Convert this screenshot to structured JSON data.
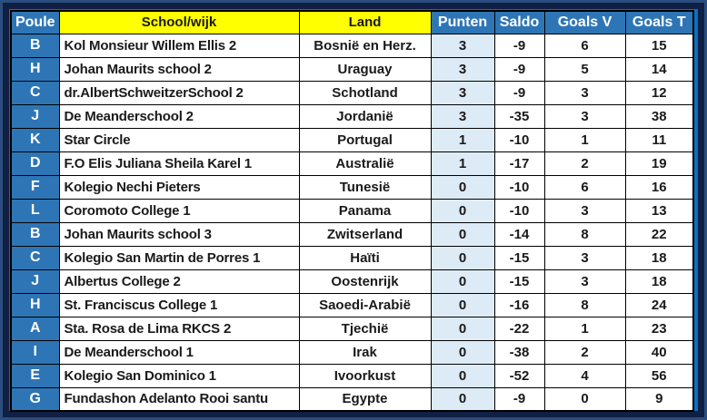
{
  "colors": {
    "background_blue": "#0d6fc0",
    "frame_outer": "#2b4d7f",
    "frame_inner": "#101f44",
    "header_blue": "#2e75b6",
    "header_yellow": "#ffff00",
    "punten_column_fill": "#ddebf7",
    "grid_line": "#000000"
  },
  "table": {
    "headers": {
      "poule": "Poule",
      "school": "School/wijk",
      "land": "Land",
      "punten": "Punten",
      "saldo": "Saldo",
      "goals_v": "Goals V",
      "goals_t": "Goals T"
    },
    "rows": [
      {
        "poule": "B",
        "school": "Kol Monsieur Willem Ellis 2",
        "land": "Bosnië en Herz.",
        "punten": "3",
        "saldo": "-9",
        "goals_v": "6",
        "goals_t": "15"
      },
      {
        "poule": "H",
        "school": "Johan Maurits school 2",
        "land": "Uraguay",
        "punten": "3",
        "saldo": "-9",
        "goals_v": "5",
        "goals_t": "14"
      },
      {
        "poule": "C",
        "school": "dr.AlbertSchweitzerSchool 2",
        "land": "Schotland",
        "punten": "3",
        "saldo": "-9",
        "goals_v": "3",
        "goals_t": "12"
      },
      {
        "poule": "J",
        "school": "De Meanderschool 2",
        "land": "Jordanië",
        "punten": "3",
        "saldo": "-35",
        "goals_v": "3",
        "goals_t": "38"
      },
      {
        "poule": "K",
        "school": "Star Circle",
        "land": "Portugal",
        "punten": "1",
        "saldo": "-10",
        "goals_v": "1",
        "goals_t": "11"
      },
      {
        "poule": "D",
        "school": "F.O Elis Juliana Sheila Karel 1",
        "land": "Australië",
        "punten": "1",
        "saldo": "-17",
        "goals_v": "2",
        "goals_t": "19"
      },
      {
        "poule": "F",
        "school": "Kolegio Nechi Pieters",
        "land": "Tunesië",
        "punten": "0",
        "saldo": "-10",
        "goals_v": "6",
        "goals_t": "16"
      },
      {
        "poule": "L",
        "school": "Coromoto College 1",
        "land": "Panama",
        "punten": "0",
        "saldo": "-10",
        "goals_v": "3",
        "goals_t": "13"
      },
      {
        "poule": "B",
        "school": "Johan Maurits school 3",
        "land": "Zwitserland",
        "punten": "0",
        "saldo": "-14",
        "goals_v": "8",
        "goals_t": "22"
      },
      {
        "poule": "C",
        "school": "Kolegio San Martin de Porres 1",
        "land": "Haïti",
        "punten": "0",
        "saldo": "-15",
        "goals_v": "3",
        "goals_t": "18"
      },
      {
        "poule": "J",
        "school": "Albertus College 2",
        "land": "Oostenrijk",
        "punten": "0",
        "saldo": "-15",
        "goals_v": "3",
        "goals_t": "18"
      },
      {
        "poule": "H",
        "school": "St. Franciscus College 1",
        "land": "Saoedi-Arabië",
        "punten": "0",
        "saldo": "-16",
        "goals_v": "8",
        "goals_t": "24"
      },
      {
        "poule": "A",
        "school": "Sta. Rosa de Lima RKCS 2",
        "land": "Tjechië",
        "punten": "0",
        "saldo": "-22",
        "goals_v": "1",
        "goals_t": "23"
      },
      {
        "poule": "I",
        "school": "De Meanderschool 1",
        "land": "Irak",
        "punten": "0",
        "saldo": "-38",
        "goals_v": "2",
        "goals_t": "40"
      },
      {
        "poule": "E",
        "school": "Kolegio San Dominico 1",
        "land": "Ivoorkust",
        "punten": "0",
        "saldo": "-52",
        "goals_v": "4",
        "goals_t": "56"
      },
      {
        "poule": "G",
        "school": "Fundashon Adelanto Rooi santu",
        "land": "Egypte",
        "punten": "0",
        "saldo": "-9",
        "goals_v": "0",
        "goals_t": "9"
      }
    ]
  }
}
